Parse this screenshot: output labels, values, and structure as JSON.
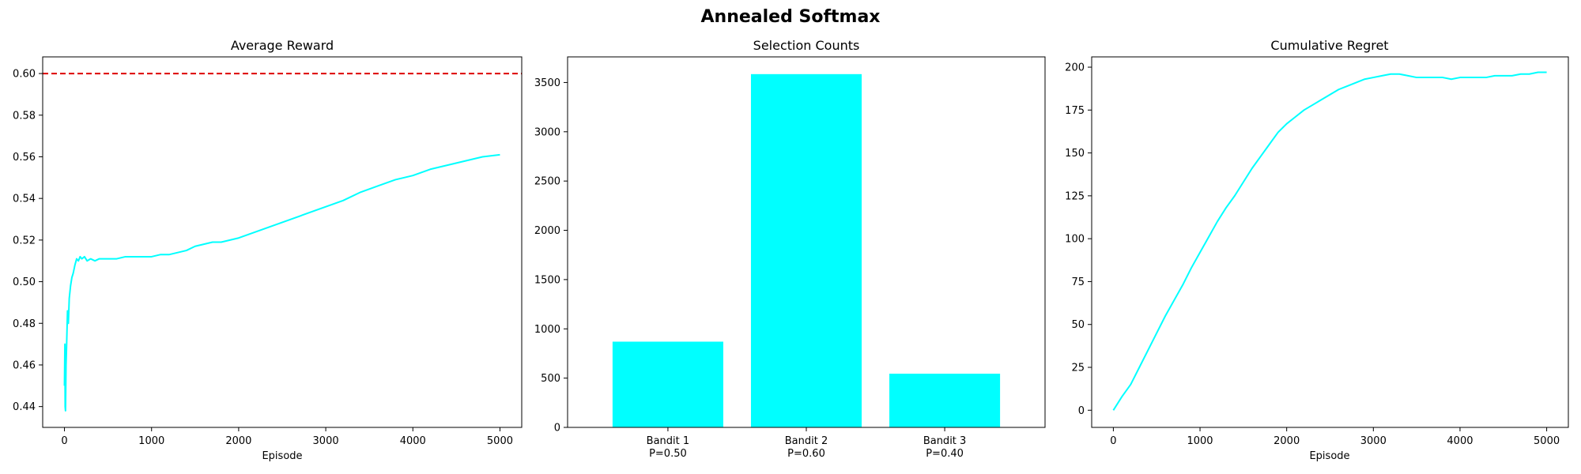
{
  "figure": {
    "title": "Annealed Softmax"
  },
  "chart_data": [
    {
      "type": "line",
      "title": "Average Reward",
      "xlabel": "Episode",
      "ylabel": "",
      "xlim": [
        -250,
        5250
      ],
      "ylim": [
        0.43,
        0.608
      ],
      "xticks": [
        0,
        1000,
        2000,
        3000,
        4000,
        5000
      ],
      "yticks": [
        0.44,
        0.46,
        0.48,
        0.5,
        0.52,
        0.54,
        0.56,
        0.58,
        0.6
      ],
      "reference_line": {
        "y": 0.6,
        "color": "#dd0000",
        "style": "dashed"
      },
      "series": [
        {
          "color": "#00ffff",
          "points": [
            [
              0,
              0.45
            ],
            [
              5,
              0.47
            ],
            [
              8,
              0.44
            ],
            [
              12,
              0.438
            ],
            [
              18,
              0.46
            ],
            [
              25,
              0.47
            ],
            [
              35,
              0.486
            ],
            [
              45,
              0.48
            ],
            [
              55,
              0.492
            ],
            [
              70,
              0.498
            ],
            [
              85,
              0.502
            ],
            [
              100,
              0.504
            ],
            [
              120,
              0.508
            ],
            [
              140,
              0.511
            ],
            [
              160,
              0.51
            ],
            [
              180,
              0.512
            ],
            [
              200,
              0.511
            ],
            [
              230,
              0.512
            ],
            [
              260,
              0.51
            ],
            [
              300,
              0.511
            ],
            [
              350,
              0.51
            ],
            [
              400,
              0.511
            ],
            [
              500,
              0.511
            ],
            [
              600,
              0.511
            ],
            [
              700,
              0.512
            ],
            [
              800,
              0.512
            ],
            [
              900,
              0.512
            ],
            [
              1000,
              0.512
            ],
            [
              1100,
              0.513
            ],
            [
              1200,
              0.513
            ],
            [
              1300,
              0.514
            ],
            [
              1400,
              0.515
            ],
            [
              1500,
              0.517
            ],
            [
              1600,
              0.518
            ],
            [
              1700,
              0.519
            ],
            [
              1800,
              0.519
            ],
            [
              1900,
              0.52
            ],
            [
              2000,
              0.521
            ],
            [
              2200,
              0.524
            ],
            [
              2400,
              0.527
            ],
            [
              2600,
              0.53
            ],
            [
              2800,
              0.533
            ],
            [
              3000,
              0.536
            ],
            [
              3200,
              0.539
            ],
            [
              3400,
              0.543
            ],
            [
              3600,
              0.546
            ],
            [
              3800,
              0.549
            ],
            [
              4000,
              0.551
            ],
            [
              4200,
              0.554
            ],
            [
              4400,
              0.556
            ],
            [
              4600,
              0.558
            ],
            [
              4800,
              0.56
            ],
            [
              5000,
              0.561
            ]
          ]
        }
      ]
    },
    {
      "type": "bar",
      "title": "Selection Counts",
      "xlabel": "",
      "ylabel": "",
      "categories": [
        "Bandit 1\nP=0.50",
        "Bandit 2\nP=0.60",
        "Bandit 3\nP=0.40"
      ],
      "values": [
        870,
        3585,
        545
      ],
      "ylim": [
        0,
        3760
      ],
      "yticks": [
        0,
        500,
        1000,
        1500,
        2000,
        2500,
        3000,
        3500
      ],
      "color": "#00ffff"
    },
    {
      "type": "line",
      "title": "Cumulative Regret",
      "xlabel": "Episode",
      "ylabel": "",
      "xlim": [
        -250,
        5250
      ],
      "ylim": [
        -10,
        206
      ],
      "xticks": [
        0,
        1000,
        2000,
        3000,
        4000,
        5000
      ],
      "yticks": [
        0,
        25,
        50,
        75,
        100,
        125,
        150,
        175,
        200
      ],
      "series": [
        {
          "color": "#00ffff",
          "points": [
            [
              0,
              0
            ],
            [
              100,
              8
            ],
            [
              200,
              15
            ],
            [
              300,
              25
            ],
            [
              400,
              35
            ],
            [
              500,
              45
            ],
            [
              600,
              55
            ],
            [
              700,
              64
            ],
            [
              800,
              73
            ],
            [
              900,
              83
            ],
            [
              1000,
              92
            ],
            [
              1100,
              101
            ],
            [
              1200,
              110
            ],
            [
              1300,
              118
            ],
            [
              1400,
              125
            ],
            [
              1500,
              133
            ],
            [
              1600,
              141
            ],
            [
              1700,
              148
            ],
            [
              1800,
              155
            ],
            [
              1900,
              162
            ],
            [
              2000,
              167
            ],
            [
              2100,
              171
            ],
            [
              2200,
              175
            ],
            [
              2300,
              178
            ],
            [
              2400,
              181
            ],
            [
              2500,
              184
            ],
            [
              2600,
              187
            ],
            [
              2700,
              189
            ],
            [
              2800,
              191
            ],
            [
              2900,
              193
            ],
            [
              3000,
              194
            ],
            [
              3100,
              195
            ],
            [
              3200,
              196
            ],
            [
              3300,
              196
            ],
            [
              3400,
              195
            ],
            [
              3500,
              194
            ],
            [
              3600,
              194
            ],
            [
              3700,
              194
            ],
            [
              3800,
              194
            ],
            [
              3900,
              193
            ],
            [
              4000,
              194
            ],
            [
              4100,
              194
            ],
            [
              4200,
              194
            ],
            [
              4300,
              194
            ],
            [
              4400,
              195
            ],
            [
              4500,
              195
            ],
            [
              4600,
              195
            ],
            [
              4700,
              196
            ],
            [
              4800,
              196
            ],
            [
              4900,
              197
            ],
            [
              5000,
              197
            ]
          ]
        }
      ]
    }
  ]
}
